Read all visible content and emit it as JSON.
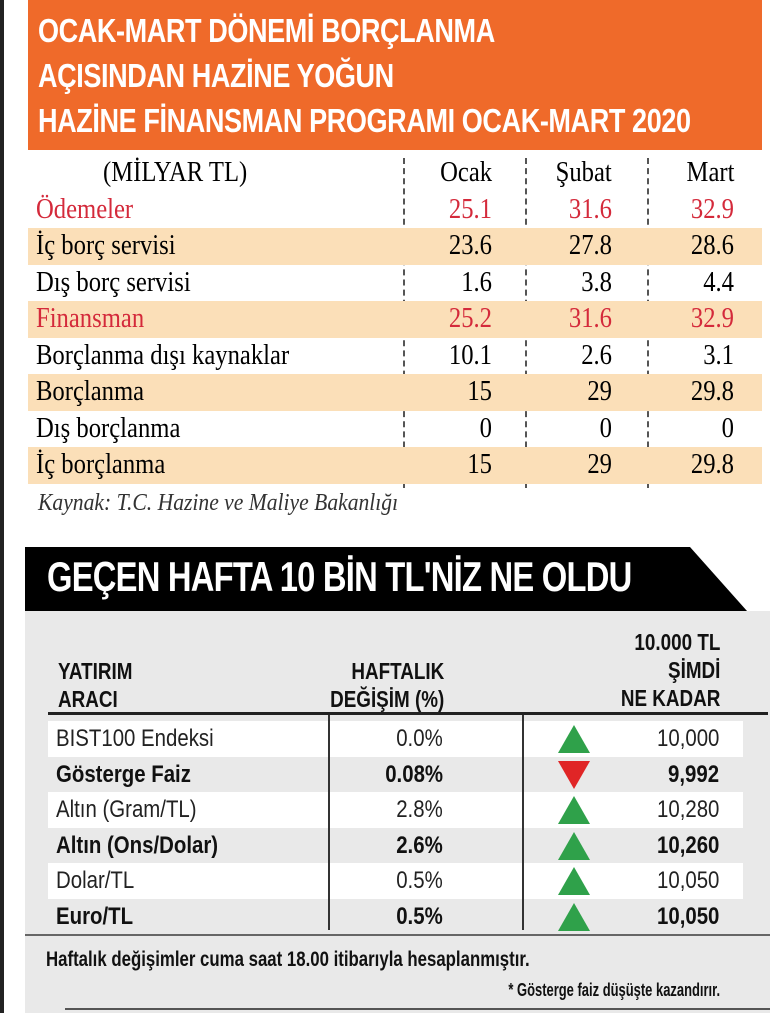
{
  "header": {
    "lines": [
      "OCAK-MART DÖNEMİ BORÇLANMA",
      "AÇISINDAN HAZİNE YOĞUN",
      "HAZİNE FİNANSMAN PROGRAMI OCAK-MART 2020"
    ],
    "color": "#ef6a2a"
  },
  "table1": {
    "unit": "(MİLYAR TL)",
    "columns": [
      "Ocak",
      "Şubat",
      "Mart"
    ],
    "rows": [
      {
        "label": "Ödemeler",
        "values": [
          "25.1",
          "31.6",
          "32.9"
        ]
      },
      {
        "label": "İç borç servisi",
        "values": [
          "23.6",
          "27.8",
          "28.6"
        ]
      },
      {
        "label": "Dış borç servisi",
        "values": [
          "1.6",
          "3.8",
          "4.4"
        ]
      },
      {
        "label": "Finansman",
        "values": [
          "25.2",
          "31.6",
          "32.9"
        ]
      },
      {
        "label": "Borçlanma dışı kaynaklar",
        "values": [
          "10.1",
          "2.6",
          "3.1"
        ]
      },
      {
        "label": "Borçlanma",
        "values": [
          "15",
          "29",
          "29.8"
        ]
      },
      {
        "label": "Dış borçlanma",
        "values": [
          "0",
          "0",
          "0"
        ]
      },
      {
        "label": "İç borçlanma",
        "values": [
          "15",
          "29",
          "29.8"
        ]
      }
    ],
    "source": "Kaynak: T.C. Hazine ve Maliye Bakanlığı"
  },
  "table2": {
    "title": "GEÇEN HAFTA 10 BİN TL'NİZ NE OLDU",
    "headers": {
      "col1": [
        "YATIRIM",
        "ARACI"
      ],
      "col2": [
        "HAFTALIK",
        "DEĞİŞİM (%)"
      ],
      "col3": [
        "10.000 TL",
        "ŞİMDİ",
        "NE KADAR"
      ]
    },
    "rows": [
      {
        "label": "BIST100 Endeksi",
        "change": "0.0%",
        "value": "10,000",
        "trend": "up"
      },
      {
        "label": "Gösterge Faiz",
        "change": "0.08%",
        "value": "9,992",
        "trend": "down"
      },
      {
        "label": "Altın (Gram/TL)",
        "change": "2.8%",
        "value": "10,280",
        "trend": "up"
      },
      {
        "label": "Altın (Ons/Dolar)",
        "change": "2.6%",
        "value": "10,260",
        "trend": "up"
      },
      {
        "label": "Dolar/TL",
        "change": "0.5%",
        "value": "10,050",
        "trend": "up"
      },
      {
        "label": "Euro/TL",
        "change": "0.5%",
        "value": "10,050",
        "trend": "up"
      }
    ],
    "note": "Haftalık değişimler cuma saat 18.00 itibarıyla hesaplanmıştır.",
    "footnote": "* Gösterge faiz düşüşte kazandırır.",
    "colors": {
      "up": "#2fa14a",
      "down": "#e02526"
    }
  }
}
